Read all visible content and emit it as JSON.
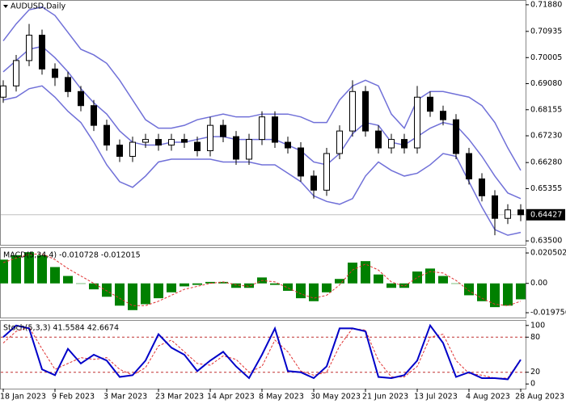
{
  "chart_data": [
    {
      "type": "candlestick",
      "title": "AUDUSD,Daily",
      "open": [
        0.686,
        0.69,
        0.699,
        0.708,
        0.696,
        0.693,
        0.688,
        0.683,
        0.676,
        0.669,
        0.665,
        0.67,
        0.671,
        0.669,
        0.671,
        0.67,
        0.667,
        0.676,
        0.672,
        0.664,
        0.671,
        0.679,
        0.67,
        0.668,
        0.658,
        0.653,
        0.666,
        0.674,
        0.688,
        0.674,
        0.668,
        0.671,
        0.668,
        0.686,
        0.681,
        0.678,
        0.666,
        0.657,
        0.651,
        0.643,
        0.646
      ],
      "high": [
        0.692,
        0.701,
        0.712,
        0.71,
        0.698,
        0.695,
        0.69,
        0.685,
        0.678,
        0.671,
        0.672,
        0.673,
        0.673,
        0.673,
        0.673,
        0.672,
        0.679,
        0.678,
        0.674,
        0.673,
        0.681,
        0.681,
        0.672,
        0.67,
        0.66,
        0.668,
        0.676,
        0.692,
        0.69,
        0.676,
        0.673,
        0.673,
        0.69,
        0.688,
        0.683,
        0.68,
        0.668,
        0.659,
        0.653,
        0.648,
        0.648
      ],
      "low": [
        0.684,
        0.688,
        0.697,
        0.694,
        0.69,
        0.686,
        0.681,
        0.674,
        0.667,
        0.663,
        0.663,
        0.668,
        0.667,
        0.667,
        0.668,
        0.665,
        0.665,
        0.67,
        0.662,
        0.662,
        0.669,
        0.668,
        0.666,
        0.656,
        0.65,
        0.651,
        0.664,
        0.672,
        0.672,
        0.666,
        0.666,
        0.666,
        0.666,
        0.679,
        0.676,
        0.664,
        0.655,
        0.649,
        0.637,
        0.641,
        0.642
      ],
      "close": [
        0.69,
        0.699,
        0.708,
        0.696,
        0.693,
        0.688,
        0.683,
        0.676,
        0.669,
        0.665,
        0.67,
        0.671,
        0.669,
        0.671,
        0.67,
        0.667,
        0.676,
        0.672,
        0.664,
        0.671,
        0.679,
        0.67,
        0.668,
        0.658,
        0.653,
        0.666,
        0.674,
        0.688,
        0.674,
        0.668,
        0.671,
        0.668,
        0.686,
        0.681,
        0.678,
        0.666,
        0.657,
        0.651,
        0.643,
        0.646,
        0.64427
      ],
      "bullish_color": "#ffffff",
      "bearish_color": "#000000",
      "bands": {
        "color": "#7070d8",
        "upper": [
          0.706,
          0.712,
          0.717,
          0.718,
          0.715,
          0.709,
          0.703,
          0.701,
          0.698,
          0.692,
          0.685,
          0.678,
          0.675,
          0.675,
          0.676,
          0.678,
          0.679,
          0.68,
          0.679,
          0.679,
          0.68,
          0.68,
          0.68,
          0.679,
          0.677,
          0.677,
          0.685,
          0.69,
          0.692,
          0.69,
          0.68,
          0.675,
          0.685,
          0.688,
          0.688,
          0.687,
          0.686,
          0.683,
          0.677,
          0.668,
          0.66
        ],
        "middle": [
          0.695,
          0.699,
          0.703,
          0.704,
          0.7,
          0.695,
          0.689,
          0.684,
          0.68,
          0.674,
          0.67,
          0.669,
          0.669,
          0.67,
          0.67,
          0.671,
          0.672,
          0.672,
          0.671,
          0.671,
          0.671,
          0.671,
          0.669,
          0.667,
          0.663,
          0.662,
          0.666,
          0.673,
          0.677,
          0.676,
          0.67,
          0.669,
          0.672,
          0.675,
          0.677,
          0.676,
          0.671,
          0.665,
          0.658,
          0.652,
          0.65
        ],
        "lower": [
          0.685,
          0.686,
          0.689,
          0.69,
          0.686,
          0.681,
          0.677,
          0.67,
          0.662,
          0.656,
          0.654,
          0.658,
          0.663,
          0.664,
          0.664,
          0.664,
          0.664,
          0.663,
          0.663,
          0.663,
          0.662,
          0.662,
          0.659,
          0.656,
          0.651,
          0.649,
          0.648,
          0.65,
          0.658,
          0.663,
          0.66,
          0.658,
          0.659,
          0.662,
          0.666,
          0.665,
          0.656,
          0.647,
          0.639,
          0.637,
          0.638
        ]
      },
      "current_price": 0.64427,
      "ylim": [
        0.6336,
        0.7202
      ],
      "yticks": [
        {
          "value": 0.7188,
          "label": "0.71880"
        },
        0.70935,
        0.70005,
        {
          "value": 0.6908,
          "label": "0.69080"
        },
        0.68155,
        {
          "value": 0.6723,
          "label": "0.67230"
        },
        {
          "value": 0.6628,
          "label": "0.66280"
        },
        0.65355,
        {
          "value": 0.635,
          "label": "0.63500"
        }
      ]
    },
    {
      "type": "bar",
      "title": "MACD(5,34,4) -0.010728 -0.012015",
      "color": "#008000",
      "values": [
        0.016,
        0.019,
        0.021,
        0.019,
        0.011,
        0.005,
        0.0,
        -0.004,
        -0.009,
        -0.015,
        -0.018,
        -0.014,
        -0.01,
        -0.006,
        -0.002,
        -0.001,
        0.001,
        0.001,
        -0.003,
        -0.003,
        0.004,
        -0.001,
        -0.005,
        -0.01,
        -0.012,
        -0.006,
        0.003,
        0.014,
        0.015,
        0.006,
        -0.003,
        -0.003,
        0.008,
        0.01,
        0.005,
        0.0,
        -0.008,
        -0.012,
        -0.016,
        -0.015,
        -0.010728
      ],
      "signal": [
        0.014,
        0.017,
        0.0195,
        0.02,
        0.016,
        0.01,
        0.005,
        0.0,
        -0.005,
        -0.01,
        -0.015,
        -0.015,
        -0.012,
        -0.008,
        -0.004,
        -0.002,
        0.0,
        0.001,
        -0.001,
        -0.002,
        0.002,
        0.001,
        -0.003,
        -0.007,
        -0.01,
        -0.008,
        -0.001,
        0.009,
        0.013,
        0.009,
        0.001,
        -0.002,
        0.004,
        0.008,
        0.007,
        0.002,
        -0.005,
        -0.01,
        -0.014,
        -0.015,
        -0.012015
      ],
      "signal_color": "#e03030",
      "ylim": [
        -0.023,
        0.0238
      ],
      "yticks": [
        0.020502,
        {
          "value": 0,
          "label": "0.00"
        },
        -0.019756
      ]
    },
    {
      "type": "line",
      "title": "Stoch(5,3,3) 41.5584 42.6674",
      "categories": [
        "18 Jan 2023",
        null,
        null,
        null,
        "9 Feb 2023",
        null,
        null,
        null,
        "3 Mar 2023",
        null,
        null,
        null,
        "23 Mar 2023",
        null,
        null,
        null,
        "14 Apr 2023",
        null,
        null,
        null,
        "8 May 2023",
        null,
        null,
        null,
        "30 May 2023",
        null,
        null,
        null,
        "21 Jun 2023",
        null,
        null,
        null,
        "13 Jul 2023",
        null,
        null,
        null,
        "4 Aug 2023",
        null,
        null,
        null,
        "28 Aug 2023"
      ],
      "main": [
        80,
        100,
        95,
        25,
        15,
        60,
        35,
        50,
        40,
        12,
        15,
        40,
        85,
        62,
        50,
        22,
        40,
        55,
        30,
        10,
        50,
        95,
        22,
        20,
        10,
        30,
        95,
        95,
        90,
        12,
        10,
        15,
        40,
        100,
        70,
        12,
        20,
        10,
        10,
        8,
        41.5584
      ],
      "signal": [
        70,
        90,
        97,
        60,
        25,
        35,
        45,
        42,
        45,
        25,
        15,
        28,
        65,
        75,
        55,
        35,
        32,
        48,
        42,
        20,
        30,
        75,
        55,
        22,
        15,
        20,
        65,
        95,
        92,
        40,
        12,
        12,
        30,
        80,
        85,
        40,
        18,
        15,
        10,
        10,
        42.6674
      ],
      "main_color": "#0000c8",
      "signal_color": "#e03030",
      "levels": [
        80,
        20
      ],
      "ylim": [
        -8,
        108
      ],
      "yticks": [
        100,
        80,
        20,
        0
      ]
    }
  ]
}
